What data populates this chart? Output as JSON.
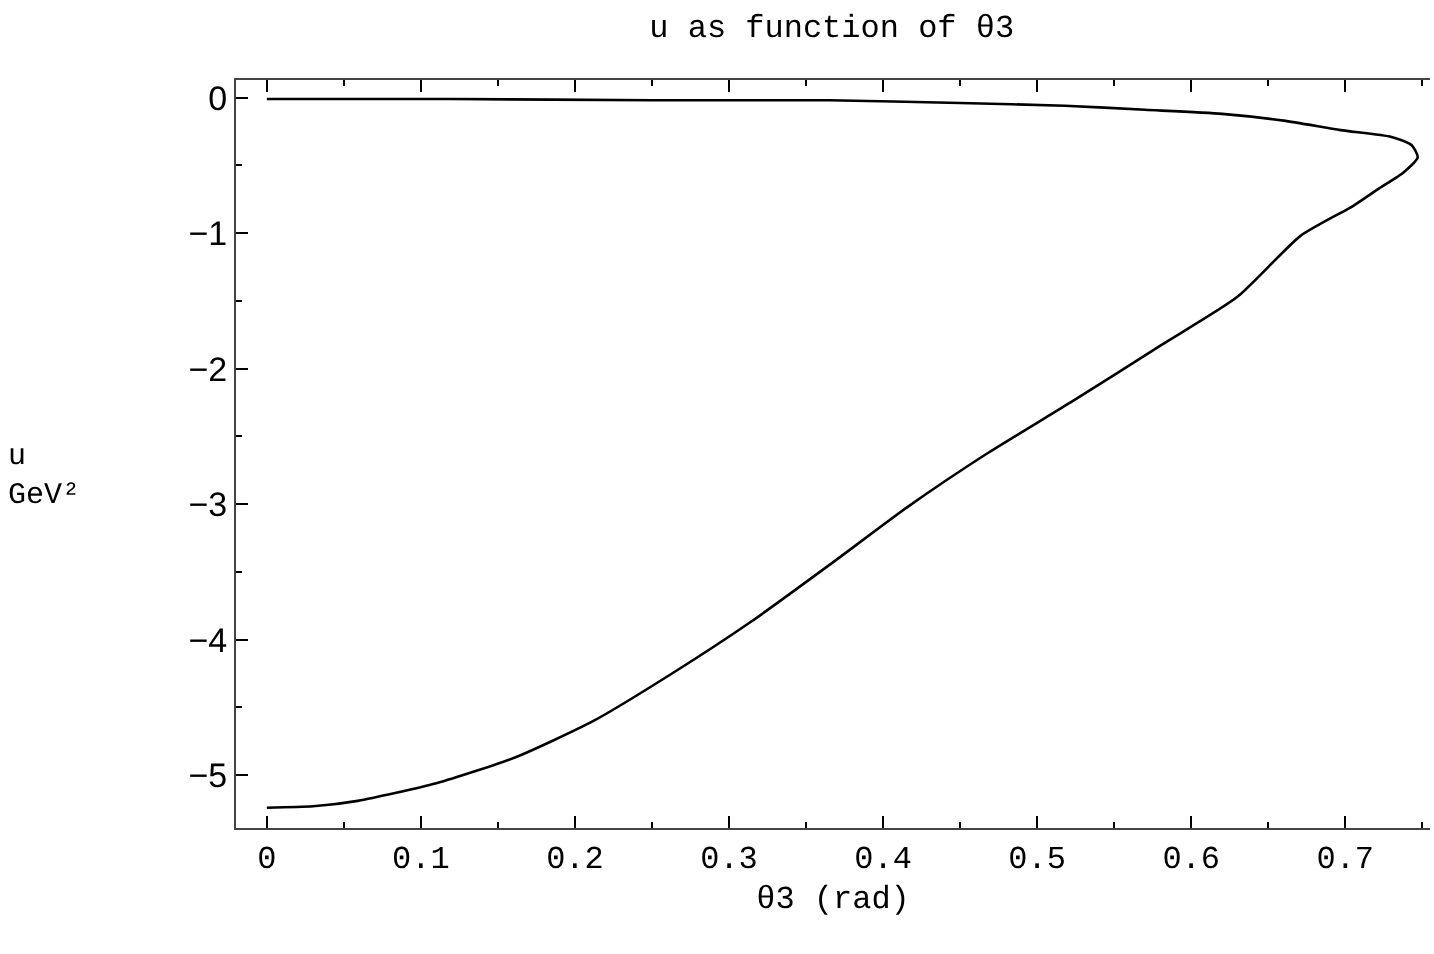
{
  "chart_data": {
    "type": "line",
    "title": "u as function of θ3",
    "xlabel": "θ3 (rad)",
    "ylabel": "u\nGeV²",
    "series": [
      {
        "color": "#000000",
        "x": [
          0,
          0.03,
          0.059,
          0.11,
          0.161,
          0.212,
          0.263,
          0.314,
          0.365,
          0.416,
          0.467,
          0.523,
          0.58,
          0.63,
          0.671,
          0.705,
          0.722,
          0.738,
          0.747,
          0.743,
          0.73,
          0.697,
          0.66,
          0.62,
          0.57,
          0.518,
          0.45,
          0.365,
          0.25,
          0.12,
          0
        ],
        "values": [
          -5.24,
          -5.23,
          -5.19,
          -5.06,
          -4.87,
          -4.6,
          -4.25,
          -3.87,
          -3.45,
          -3.02,
          -2.63,
          -2.24,
          -1.83,
          -1.47,
          -1.02,
          -0.8,
          -0.67,
          -0.55,
          -0.44,
          -0.35,
          -0.29,
          -0.24,
          -0.17,
          -0.12,
          -0.09,
          -0.06,
          -0.04,
          -0.02,
          -0.02,
          -0.01,
          -0.01
        ]
      }
    ],
    "xlim": [
      -0.02,
      0.755
    ],
    "ylim": [
      -5.39,
      0.13
    ],
    "xticks": [
      0,
      0.1,
      0.2,
      0.3,
      0.4,
      0.5,
      0.6,
      0.7
    ],
    "yticks": [
      {
        "value": 0,
        "label": "0"
      },
      {
        "value": -1,
        "label": "−1"
      },
      {
        "value": -2,
        "label": "−2"
      },
      {
        "value": -3,
        "label": "−3"
      },
      {
        "value": -4,
        "label": "−4"
      },
      {
        "value": -5,
        "label": "−5"
      }
    ],
    "marker": "none",
    "line_style": "solid"
  }
}
